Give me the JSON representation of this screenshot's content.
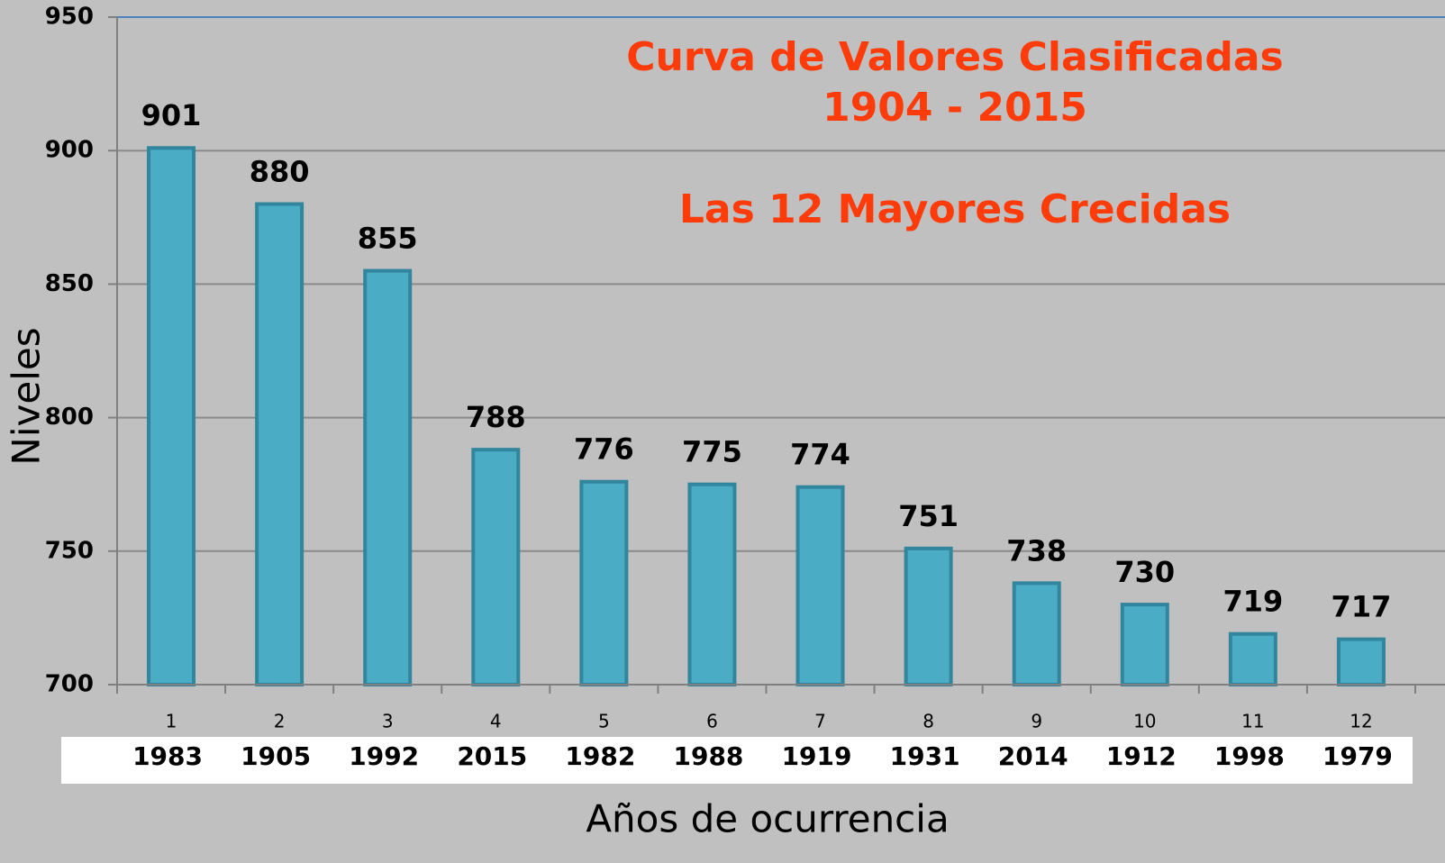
{
  "chart_data": {
    "type": "bar",
    "title": [
      "Curva de Valores Clasificadas",
      "1904 - 2015"
    ],
    "subtitle": "Las 12 Mayores Crecidas",
    "y_label": "Niveles",
    "x_label": "Años de ocurrencia",
    "categories": [
      "1",
      "2",
      "3",
      "4",
      "5",
      "6",
      "7",
      "8",
      "9",
      "10",
      "11",
      "12"
    ],
    "years": [
      "1983",
      "1905",
      "1992",
      "2015",
      "1982",
      "1988",
      "1919",
      "1931",
      "2014",
      "1912",
      "1998",
      "1979"
    ],
    "values": [
      901,
      880,
      855,
      788,
      776,
      775,
      774,
      751,
      738,
      730,
      719,
      717
    ],
    "color": "#4bacc6",
    "ylim": [
      700,
      950
    ],
    "yticks": [
      700,
      750,
      800,
      850,
      900,
      950
    ],
    "grid": true
  }
}
